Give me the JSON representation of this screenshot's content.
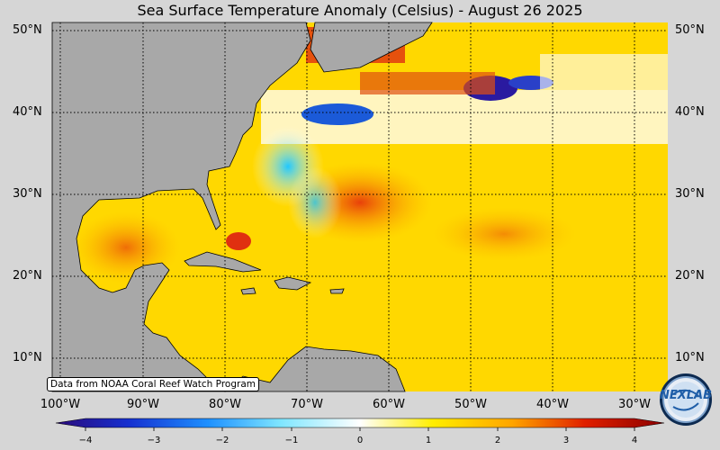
{
  "title": "Sea Surface Temperature Anomaly (Celsius) - August 26 2025",
  "lat_labels": [
    "50°N",
    "40°N",
    "30°N",
    "20°N",
    "10°N"
  ],
  "lon_labels": [
    "100°W",
    "90°W",
    "80°W",
    "70°W",
    "60°W",
    "50°W",
    "40°W",
    "30°W"
  ],
  "credit": "Data from NOAA Coral Reef Watch Program",
  "colorbar": {
    "ticks": [
      "−4",
      "−3",
      "−2",
      "−1",
      "0",
      "1",
      "2",
      "3",
      "4"
    ],
    "min": -4,
    "max": 4
  },
  "logo": {
    "text": "NEXLAB",
    "icon": "nexlab-logo"
  },
  "colors": {
    "land": "#a8a8a8",
    "ocean_warm": "#ffd400",
    "hot": "#e0300a",
    "cold": "#1b4bd0",
    "neutral": "#ffffff"
  }
}
